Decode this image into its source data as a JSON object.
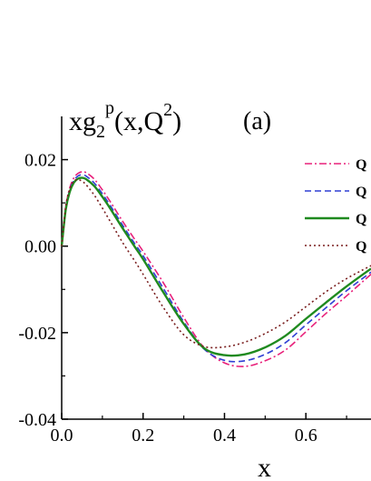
{
  "chart_data": {
    "type": "line",
    "title": "",
    "ylabel": {
      "prefix": "xg",
      "sub": "2",
      "sup": "p",
      "args_open": "(x,Q",
      "args_sup": "2",
      "args_close": ")"
    },
    "xlabel": "x",
    "panel_label": "(a)",
    "xlim": [
      0.0,
      0.76
    ],
    "ylim": [
      -0.04,
      0.03
    ],
    "xticks": [
      "0.0",
      "0.2",
      "0.4",
      "0.6"
    ],
    "xtick_values": [
      0.0,
      0.2,
      0.4,
      0.6
    ],
    "yticks": [
      "0.02",
      "0.00",
      "-0.02",
      "-0.04"
    ],
    "ytick_values": [
      0.02,
      0.0,
      -0.02,
      -0.04
    ],
    "legend_position": "right",
    "series": [
      {
        "legend_label": "Q",
        "color": "#e8207a",
        "dash": "dashdot",
        "x": [
          0.0,
          0.01,
          0.02,
          0.03,
          0.04,
          0.05,
          0.06,
          0.08,
          0.1,
          0.12,
          0.15,
          0.18,
          0.2,
          0.25,
          0.3,
          0.35,
          0.4,
          0.45,
          0.5,
          0.55,
          0.6,
          0.65,
          0.7,
          0.76
        ],
        "y": [
          0.0,
          0.009,
          0.0135,
          0.0158,
          0.0168,
          0.0172,
          0.017,
          0.0155,
          0.013,
          0.0102,
          0.0057,
          0.0015,
          -0.0012,
          -0.0085,
          -0.0165,
          -0.0235,
          -0.027,
          -0.0278,
          -0.0265,
          -0.024,
          -0.0198,
          -0.0155,
          -0.0115,
          -0.0065
        ]
      },
      {
        "legend_label": "Q",
        "color": "#2f3fd4",
        "dash": "dashed",
        "x": [
          0.0,
          0.01,
          0.02,
          0.03,
          0.04,
          0.05,
          0.06,
          0.08,
          0.1,
          0.12,
          0.15,
          0.18,
          0.2,
          0.25,
          0.3,
          0.35,
          0.4,
          0.45,
          0.5,
          0.55,
          0.6,
          0.65,
          0.7,
          0.76
        ],
        "y": [
          0.0,
          0.0088,
          0.013,
          0.0152,
          0.0162,
          0.0165,
          0.0162,
          0.0146,
          0.0121,
          0.0093,
          0.0048,
          0.0005,
          -0.0022,
          -0.0098,
          -0.0175,
          -0.0238,
          -0.0264,
          -0.0265,
          -0.025,
          -0.0223,
          -0.0182,
          -0.0142,
          -0.0103,
          -0.006
        ]
      },
      {
        "legend_label": "Q",
        "color": "#1f8a1f",
        "dash": "solid",
        "x": [
          0.0,
          0.01,
          0.02,
          0.03,
          0.04,
          0.05,
          0.06,
          0.08,
          0.1,
          0.12,
          0.15,
          0.18,
          0.2,
          0.25,
          0.3,
          0.35,
          0.4,
          0.45,
          0.5,
          0.55,
          0.6,
          0.65,
          0.7,
          0.76
        ],
        "y": [
          0.0,
          0.0085,
          0.0126,
          0.0147,
          0.0156,
          0.0158,
          0.0155,
          0.0139,
          0.0114,
          0.0086,
          0.0041,
          -0.0002,
          -0.003,
          -0.0107,
          -0.018,
          -0.0236,
          -0.0252,
          -0.025,
          -0.0234,
          -0.0207,
          -0.0168,
          -0.013,
          -0.0093,
          -0.0052
        ]
      },
      {
        "legend_label": "Q",
        "color": "#7a1f1f",
        "dash": "dotted",
        "x": [
          0.0,
          0.01,
          0.02,
          0.03,
          0.04,
          0.05,
          0.06,
          0.08,
          0.1,
          0.12,
          0.15,
          0.18,
          0.2,
          0.25,
          0.3,
          0.35,
          0.4,
          0.45,
          0.5,
          0.55,
          0.6,
          0.65,
          0.7,
          0.76
        ],
        "y": [
          0.0,
          0.0092,
          0.0132,
          0.015,
          0.0154,
          0.015,
          0.0142,
          0.0118,
          0.0088,
          0.0056,
          0.0008,
          -0.0035,
          -0.0065,
          -0.0142,
          -0.0205,
          -0.0232,
          -0.0233,
          -0.0222,
          -0.0202,
          -0.0175,
          -0.014,
          -0.0105,
          -0.0075,
          -0.0045
        ]
      }
    ]
  }
}
